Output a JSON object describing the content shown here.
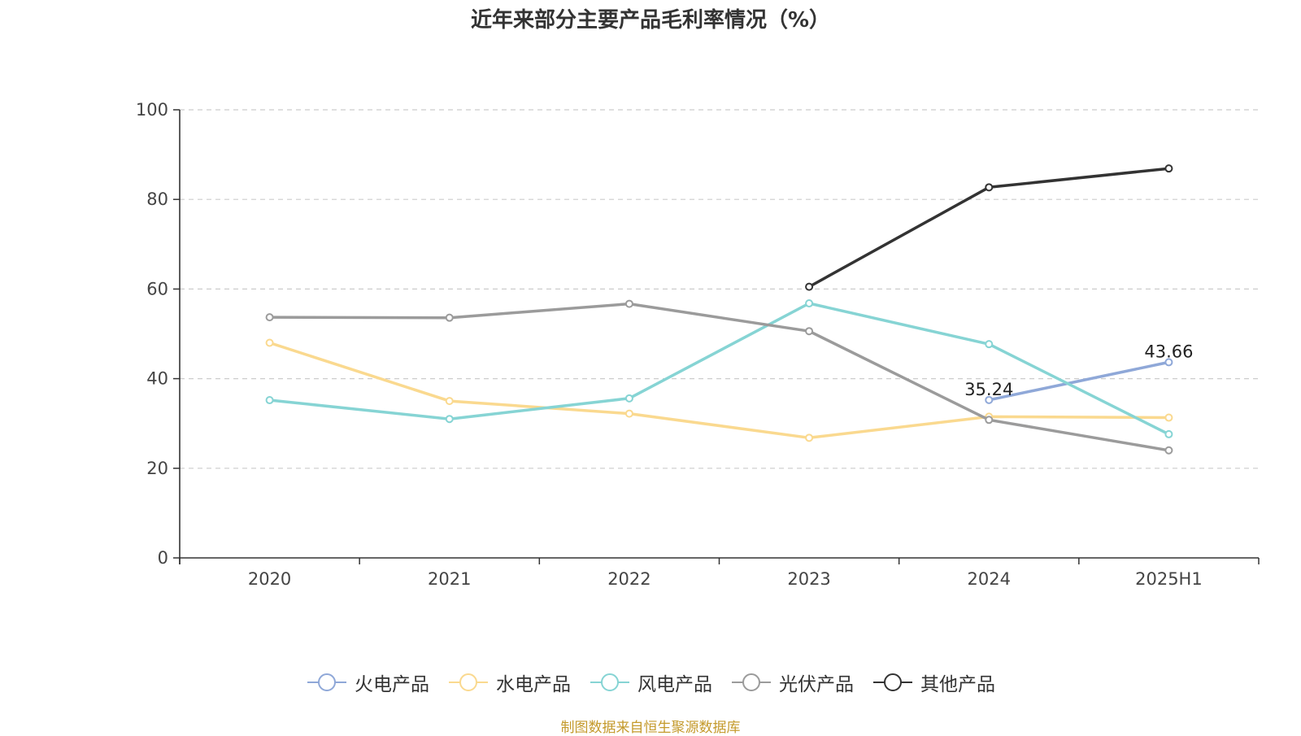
{
  "chart_data": {
    "type": "line",
    "title": "近年来部分主要产品毛利率情况（%）",
    "categories": [
      "2020",
      "2021",
      "2022",
      "2023",
      "2024",
      "2025H1"
    ],
    "ylim": [
      0,
      100
    ],
    "yticks": [
      0,
      20,
      40,
      60,
      80,
      100
    ],
    "grid": true,
    "legend_position": "bottom",
    "series": [
      {
        "name": "火电产品",
        "color": "#8fa8d8",
        "values": [
          null,
          null,
          null,
          null,
          35.24,
          43.66
        ],
        "labels": [
          null,
          null,
          null,
          null,
          "35.24",
          "43.66"
        ]
      },
      {
        "name": "水电产品",
        "color": "#fad98f",
        "values": [
          48.0,
          35.0,
          32.2,
          26.8,
          31.5,
          31.3
        ],
        "labels": []
      },
      {
        "name": "风电产品",
        "color": "#86d4d4",
        "values": [
          35.2,
          31.0,
          35.6,
          56.8,
          47.7,
          27.6
        ],
        "labels": []
      },
      {
        "name": "光伏产品",
        "color": "#9b9b9b",
        "values": [
          53.7,
          53.6,
          56.7,
          50.6,
          30.8,
          24.0
        ],
        "labels": []
      },
      {
        "name": "其他产品",
        "color": "#333333",
        "values": [
          null,
          null,
          null,
          60.5,
          82.7,
          86.9
        ],
        "labels": []
      }
    ]
  },
  "footer": {
    "source": "制图数据来自恒生聚源数据库"
  }
}
